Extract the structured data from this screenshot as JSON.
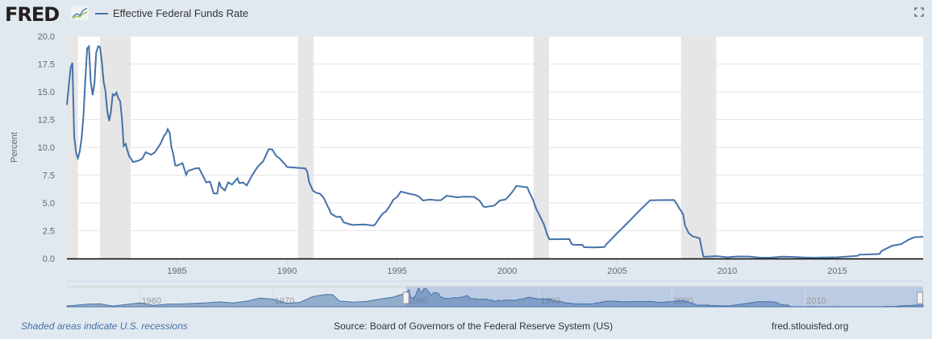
{
  "header": {
    "logo": "FRED",
    "legend": "Effective Federal Funds Rate"
  },
  "footer": {
    "recession_note": "Shaded areas indicate U.S. recessions",
    "source": "Source: Board of Governors of the Federal Reserve System (US)",
    "site": "fred.stlouisfed.org"
  },
  "colors": {
    "line": "#4572a7",
    "recession": "#e6e6e6",
    "background": "#e1e9f0"
  },
  "chart_data": {
    "type": "line",
    "title": "Effective Federal Funds Rate",
    "ylabel": "Percent",
    "xlabel": "",
    "ylim": [
      0,
      20
    ],
    "xlim": [
      1980,
      2018.9
    ],
    "yticks": [
      "0.0",
      "2.5",
      "5.0",
      "7.5",
      "10.0",
      "12.5",
      "15.0",
      "17.5",
      "20.0"
    ],
    "xticks": [
      "1985",
      "1990",
      "1995",
      "2000",
      "2005",
      "2010",
      "2015"
    ],
    "grid": true,
    "legend": "top-left",
    "recessions": [
      [
        1980.0,
        1980.5
      ],
      [
        1981.5,
        1982.9
      ],
      [
        1990.5,
        1991.2
      ],
      [
        2001.2,
        2001.9
      ],
      [
        2007.9,
        2009.5
      ]
    ],
    "series": [
      {
        "name": "Effective Federal Funds Rate",
        "points": [
          [
            1980.0,
            13.82
          ],
          [
            1980.17,
            17.19
          ],
          [
            1980.25,
            17.61
          ],
          [
            1980.33,
            10.98
          ],
          [
            1980.42,
            9.47
          ],
          [
            1980.5,
            9.03
          ],
          [
            1980.58,
            9.61
          ],
          [
            1980.67,
            10.87
          ],
          [
            1980.75,
            12.81
          ],
          [
            1980.83,
            15.85
          ],
          [
            1980.92,
            18.9
          ],
          [
            1981.0,
            19.08
          ],
          [
            1981.08,
            15.93
          ],
          [
            1981.17,
            14.7
          ],
          [
            1981.25,
            15.72
          ],
          [
            1981.33,
            18.52
          ],
          [
            1981.42,
            19.1
          ],
          [
            1981.5,
            19.04
          ],
          [
            1981.58,
            17.82
          ],
          [
            1981.67,
            15.87
          ],
          [
            1981.75,
            15.08
          ],
          [
            1981.83,
            13.31
          ],
          [
            1981.92,
            12.37
          ],
          [
            1982.0,
            13.22
          ],
          [
            1982.08,
            14.78
          ],
          [
            1982.17,
            14.68
          ],
          [
            1982.25,
            14.94
          ],
          [
            1982.33,
            14.45
          ],
          [
            1982.42,
            14.15
          ],
          [
            1982.5,
            12.59
          ],
          [
            1982.58,
            10.12
          ],
          [
            1982.67,
            10.31
          ],
          [
            1982.75,
            9.71
          ],
          [
            1982.83,
            9.2
          ],
          [
            1982.92,
            8.95
          ],
          [
            1983.0,
            8.68
          ],
          [
            1983.25,
            8.8
          ],
          [
            1983.42,
            8.98
          ],
          [
            1983.58,
            9.56
          ],
          [
            1983.83,
            9.34
          ],
          [
            1984.0,
            9.56
          ],
          [
            1984.25,
            10.32
          ],
          [
            1984.42,
            11.06
          ],
          [
            1984.5,
            11.23
          ],
          [
            1984.58,
            11.64
          ],
          [
            1984.67,
            11.3
          ],
          [
            1984.75,
            9.99
          ],
          [
            1984.83,
            9.43
          ],
          [
            1984.92,
            8.38
          ],
          [
            1985.0,
            8.35
          ],
          [
            1985.25,
            8.58
          ],
          [
            1985.42,
            7.53
          ],
          [
            1985.5,
            7.88
          ],
          [
            1985.83,
            8.1
          ],
          [
            1986.0,
            8.14
          ],
          [
            1986.17,
            7.48
          ],
          [
            1986.33,
            6.85
          ],
          [
            1986.5,
            6.92
          ],
          [
            1986.67,
            5.85
          ],
          [
            1986.83,
            5.85
          ],
          [
            1986.92,
            6.91
          ],
          [
            1987.0,
            6.43
          ],
          [
            1987.17,
            6.13
          ],
          [
            1987.33,
            6.85
          ],
          [
            1987.5,
            6.65
          ],
          [
            1987.75,
            7.22
          ],
          [
            1987.83,
            6.79
          ],
          [
            1988.0,
            6.83
          ],
          [
            1988.17,
            6.58
          ],
          [
            1988.42,
            7.51
          ],
          [
            1988.67,
            8.26
          ],
          [
            1988.92,
            8.76
          ],
          [
            1989.17,
            9.85
          ],
          [
            1989.33,
            9.81
          ],
          [
            1989.5,
            9.24
          ],
          [
            1989.67,
            8.99
          ],
          [
            1989.92,
            8.45
          ],
          [
            1990.0,
            8.23
          ],
          [
            1990.5,
            8.15
          ],
          [
            1990.83,
            8.11
          ],
          [
            1990.92,
            7.81
          ],
          [
            1991.0,
            6.91
          ],
          [
            1991.17,
            6.12
          ],
          [
            1991.33,
            5.91
          ],
          [
            1991.5,
            5.82
          ],
          [
            1991.67,
            5.45
          ],
          [
            1991.83,
            4.76
          ],
          [
            1991.92,
            4.43
          ],
          [
            1992.0,
            4.03
          ],
          [
            1992.25,
            3.73
          ],
          [
            1992.42,
            3.76
          ],
          [
            1992.58,
            3.25
          ],
          [
            1992.83,
            3.09
          ],
          [
            1993.0,
            3.02
          ],
          [
            1993.5,
            3.06
          ],
          [
            1993.92,
            2.96
          ],
          [
            1994.0,
            3.05
          ],
          [
            1994.17,
            3.56
          ],
          [
            1994.33,
            4.01
          ],
          [
            1994.5,
            4.25
          ],
          [
            1994.67,
            4.73
          ],
          [
            1994.83,
            5.29
          ],
          [
            1995.0,
            5.53
          ],
          [
            1995.17,
            6.02
          ],
          [
            1995.5,
            5.85
          ],
          [
            1995.83,
            5.72
          ],
          [
            1996.0,
            5.56
          ],
          [
            1996.17,
            5.22
          ],
          [
            1996.5,
            5.3
          ],
          [
            1996.83,
            5.24
          ],
          [
            1997.0,
            5.25
          ],
          [
            1997.25,
            5.64
          ],
          [
            1997.75,
            5.5
          ],
          [
            1998.0,
            5.56
          ],
          [
            1998.5,
            5.54
          ],
          [
            1998.75,
            5.2
          ],
          [
            1998.92,
            4.68
          ],
          [
            1999.0,
            4.63
          ],
          [
            1999.42,
            4.76
          ],
          [
            1999.67,
            5.22
          ],
          [
            1999.92,
            5.3
          ],
          [
            2000.0,
            5.45
          ],
          [
            2000.25,
            6.02
          ],
          [
            2000.42,
            6.53
          ],
          [
            2000.92,
            6.4
          ],
          [
            2001.0,
            5.98
          ],
          [
            2001.17,
            5.31
          ],
          [
            2001.33,
            4.42
          ],
          [
            2001.5,
            3.77
          ],
          [
            2001.67,
            3.07
          ],
          [
            2001.83,
            2.09
          ],
          [
            2001.92,
            1.73
          ],
          [
            2002.0,
            1.73
          ],
          [
            2002.83,
            1.75
          ],
          [
            2002.92,
            1.34
          ],
          [
            2003.0,
            1.24
          ],
          [
            2003.42,
            1.22
          ],
          [
            2003.5,
            1.01
          ],
          [
            2004.0,
            1.0
          ],
          [
            2004.42,
            1.03
          ],
          [
            2004.5,
            1.26
          ],
          [
            2005.0,
            2.28
          ],
          [
            2005.5,
            3.26
          ],
          [
            2006.0,
            4.29
          ],
          [
            2006.5,
            5.24
          ],
          [
            2007.0,
            5.25
          ],
          [
            2007.58,
            5.26
          ],
          [
            2007.67,
            5.02
          ],
          [
            2007.83,
            4.49
          ],
          [
            2007.92,
            4.24
          ],
          [
            2008.0,
            3.94
          ],
          [
            2008.08,
            2.98
          ],
          [
            2008.25,
            2.28
          ],
          [
            2008.42,
            2.0
          ],
          [
            2008.75,
            1.81
          ],
          [
            2008.83,
            0.97
          ],
          [
            2008.92,
            0.16
          ],
          [
            2009.0,
            0.15
          ],
          [
            2009.5,
            0.21
          ],
          [
            2010.0,
            0.11
          ],
          [
            2010.5,
            0.18
          ],
          [
            2011.0,
            0.17
          ],
          [
            2011.5,
            0.07
          ],
          [
            2012.0,
            0.08
          ],
          [
            2012.5,
            0.16
          ],
          [
            2013.0,
            0.14
          ],
          [
            2013.5,
            0.09
          ],
          [
            2014.0,
            0.07
          ],
          [
            2014.5,
            0.09
          ],
          [
            2015.0,
            0.11
          ],
          [
            2015.92,
            0.24
          ],
          [
            2016.0,
            0.34
          ],
          [
            2016.92,
            0.41
          ],
          [
            2017.0,
            0.65
          ],
          [
            2017.25,
            0.91
          ],
          [
            2017.5,
            1.15
          ],
          [
            2017.92,
            1.3
          ],
          [
            2018.0,
            1.41
          ],
          [
            2018.25,
            1.7
          ],
          [
            2018.5,
            1.91
          ],
          [
            2018.9,
            1.95
          ]
        ]
      }
    ],
    "navigator": {
      "xlim": [
        1954.5,
        2018.9
      ],
      "selected": [
        1980,
        2018.9
      ],
      "xticks": [
        "1960",
        "1970",
        "1980",
        "1990",
        "2000",
        "2010"
      ],
      "history": [
        [
          1954.5,
          1.0
        ],
        [
          1955,
          1.4
        ],
        [
          1956,
          2.7
        ],
        [
          1957,
          3.0
        ],
        [
          1958,
          0.7
        ],
        [
          1959,
          2.5
        ],
        [
          1960,
          4.0
        ],
        [
          1961,
          1.5
        ],
        [
          1962,
          2.7
        ],
        [
          1963,
          3.0
        ],
        [
          1964,
          3.5
        ],
        [
          1965,
          4.1
        ],
        [
          1966,
          5.2
        ],
        [
          1967,
          4.0
        ],
        [
          1968,
          5.8
        ],
        [
          1969,
          9.0
        ],
        [
          1970,
          8.0
        ],
        [
          1971,
          3.7
        ],
        [
          1972,
          4.5
        ],
        [
          1973,
          10.8
        ],
        [
          1974,
          12.9
        ],
        [
          1974.5,
          12.5
        ],
        [
          1975,
          6.0
        ],
        [
          1976,
          4.8
        ],
        [
          1977,
          5.5
        ],
        [
          1978,
          8.0
        ],
        [
          1979,
          10.0
        ],
        [
          1979.9,
          13.8
        ]
      ]
    }
  }
}
